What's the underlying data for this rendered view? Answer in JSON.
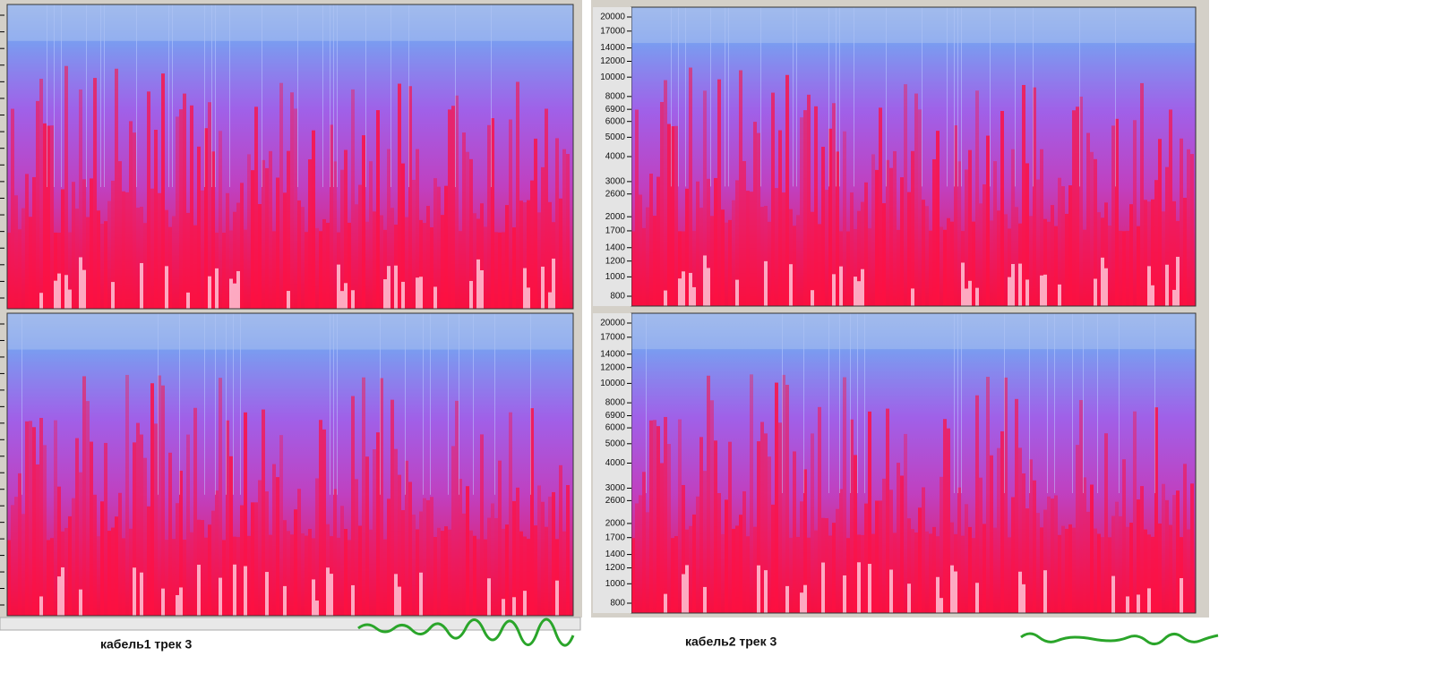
{
  "captions": [
    "кабель1 трек 3",
    "кабель2 трек 3"
  ],
  "freq_axis": {
    "ticks": [
      20000,
      17000,
      14000,
      12000,
      10000,
      8000,
      6900,
      6000,
      5000,
      4000,
      3000,
      2600,
      2000,
      1700,
      1400,
      1200,
      1000,
      800
    ]
  }
}
